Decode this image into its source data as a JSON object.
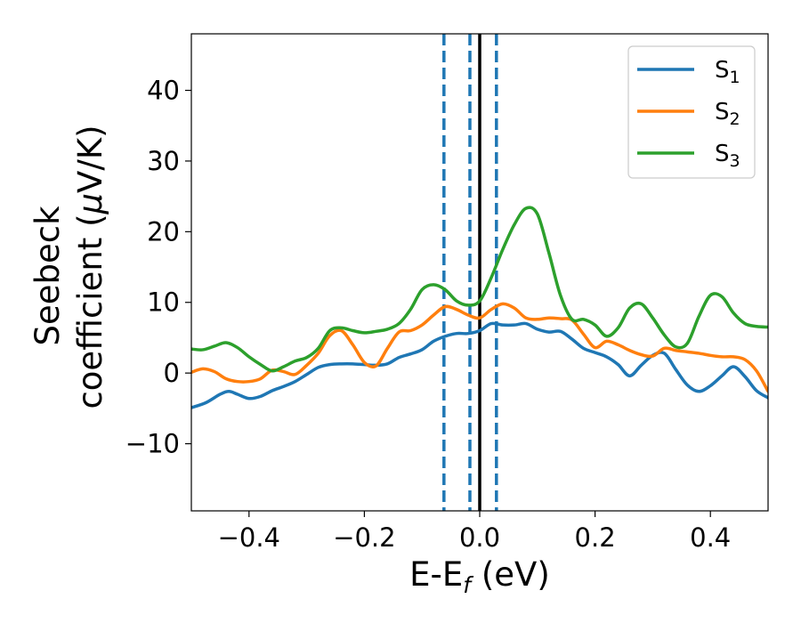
{
  "chart_data": {
    "type": "line",
    "xlabel": "E-E",
    "xlabel_sub": "f",
    "xlabel_unit": " (eV)",
    "ylabel_line1": "Seebeck",
    "ylabel_line2": "coefficient  (",
    "ylabel_mu": "μ",
    "ylabel_unit": "V/K)",
    "xlim": [
      -0.5,
      0.5
    ],
    "ylim": [
      -19.5,
      48
    ],
    "xticks": [
      -0.4,
      -0.2,
      0.0,
      0.2,
      0.4
    ],
    "xtick_labels": [
      "−0.4",
      "−0.2",
      "0.0",
      "0.2",
      "0.4"
    ],
    "yticks": [
      -10,
      0,
      10,
      20,
      30,
      40
    ],
    "ytick_labels": [
      "−10",
      "0",
      "10",
      "20",
      "30",
      "40"
    ],
    "grid": false,
    "legend_position": "top-right",
    "vlines": [
      {
        "x": 0.0,
        "style": "solid",
        "color": "#000000"
      },
      {
        "x": -0.062,
        "style": "dashed",
        "color": "#1f77b4"
      },
      {
        "x": -0.017,
        "style": "dashed",
        "color": "#1f77b4"
      },
      {
        "x": 0.029,
        "style": "dashed",
        "color": "#1f77b4"
      }
    ],
    "series": [
      {
        "name": "S",
        "sub": "1",
        "color": "#1f77b4",
        "x": [
          -0.5,
          -0.475,
          -0.45,
          -0.435,
          -0.42,
          -0.4,
          -0.38,
          -0.36,
          -0.34,
          -0.32,
          -0.3,
          -0.28,
          -0.26,
          -0.24,
          -0.22,
          -0.2,
          -0.18,
          -0.16,
          -0.14,
          -0.12,
          -0.1,
          -0.08,
          -0.06,
          -0.04,
          -0.02,
          0.0,
          0.02,
          0.04,
          0.06,
          0.08,
          0.1,
          0.12,
          0.14,
          0.16,
          0.18,
          0.2,
          0.22,
          0.24,
          0.26,
          0.28,
          0.3,
          0.32,
          0.34,
          0.36,
          0.38,
          0.4,
          0.42,
          0.44,
          0.46,
          0.48,
          0.5
        ],
        "y": [
          -4.9,
          -4.2,
          -3.0,
          -2.6,
          -3.0,
          -3.6,
          -3.3,
          -2.5,
          -1.9,
          -1.2,
          -0.2,
          0.8,
          1.2,
          1.3,
          1.3,
          1.2,
          1.1,
          1.3,
          2.2,
          2.7,
          3.3,
          4.5,
          5.2,
          5.6,
          5.6,
          6.0,
          7.0,
          6.8,
          6.8,
          7.0,
          6.2,
          5.8,
          5.9,
          4.8,
          3.5,
          2.9,
          2.3,
          1.2,
          -0.4,
          1.1,
          2.5,
          2.8,
          0.5,
          -1.7,
          -2.6,
          -1.8,
          -0.4,
          0.9,
          -0.5,
          -2.5,
          -3.5
        ]
      },
      {
        "name": "S",
        "sub": "2",
        "color": "#ff7f0e",
        "x": [
          -0.5,
          -0.48,
          -0.46,
          -0.44,
          -0.42,
          -0.4,
          -0.38,
          -0.36,
          -0.34,
          -0.32,
          -0.3,
          -0.28,
          -0.26,
          -0.24,
          -0.22,
          -0.2,
          -0.18,
          -0.16,
          -0.14,
          -0.12,
          -0.1,
          -0.08,
          -0.06,
          -0.04,
          -0.02,
          0.0,
          0.02,
          0.04,
          0.06,
          0.08,
          0.1,
          0.12,
          0.14,
          0.16,
          0.18,
          0.2,
          0.22,
          0.24,
          0.26,
          0.28,
          0.3,
          0.32,
          0.34,
          0.36,
          0.38,
          0.4,
          0.42,
          0.44,
          0.46,
          0.48,
          0.5
        ],
        "y": [
          0.1,
          0.6,
          0.2,
          -0.8,
          -1.2,
          -1.2,
          -0.8,
          0.4,
          0.2,
          -0.2,
          1.1,
          2.8,
          5.3,
          6.0,
          4.0,
          1.5,
          1.0,
          3.5,
          5.8,
          6.0,
          6.8,
          8.2,
          9.4,
          9.0,
          8.2,
          7.8,
          9.0,
          9.8,
          9.2,
          7.8,
          7.6,
          7.8,
          7.7,
          7.5,
          5.5,
          3.6,
          4.5,
          4.0,
          3.2,
          2.6,
          2.4,
          3.5,
          3.2,
          3.0,
          2.8,
          2.5,
          2.3,
          2.3,
          1.9,
          0.3,
          -2.6
        ]
      },
      {
        "name": "S",
        "sub": "3",
        "color": "#2ca02c",
        "x": [
          -0.5,
          -0.48,
          -0.46,
          -0.44,
          -0.42,
          -0.4,
          -0.38,
          -0.36,
          -0.34,
          -0.32,
          -0.3,
          -0.28,
          -0.26,
          -0.24,
          -0.22,
          -0.2,
          -0.18,
          -0.16,
          -0.14,
          -0.12,
          -0.1,
          -0.08,
          -0.06,
          -0.04,
          -0.02,
          0.0,
          0.02,
          0.04,
          0.06,
          0.08,
          0.1,
          0.12,
          0.14,
          0.16,
          0.18,
          0.2,
          0.22,
          0.24,
          0.26,
          0.28,
          0.3,
          0.32,
          0.34,
          0.36,
          0.38,
          0.4,
          0.42,
          0.44,
          0.46,
          0.48,
          0.5
        ],
        "y": [
          3.4,
          3.3,
          3.8,
          4.3,
          3.6,
          2.3,
          1.2,
          0.3,
          0.9,
          1.7,
          2.2,
          3.5,
          6.0,
          6.4,
          6.0,
          5.7,
          5.9,
          6.2,
          7.0,
          9.0,
          11.8,
          12.5,
          11.8,
          10.2,
          9.6,
          10.2,
          13.5,
          17.5,
          21.0,
          23.3,
          22.5,
          17.0,
          11.0,
          7.6,
          7.6,
          6.8,
          5.2,
          6.4,
          9.2,
          9.8,
          7.8,
          5.4,
          3.7,
          4.2,
          8.0,
          11.0,
          10.8,
          8.5,
          7.0,
          6.6,
          6.5
        ]
      }
    ]
  }
}
